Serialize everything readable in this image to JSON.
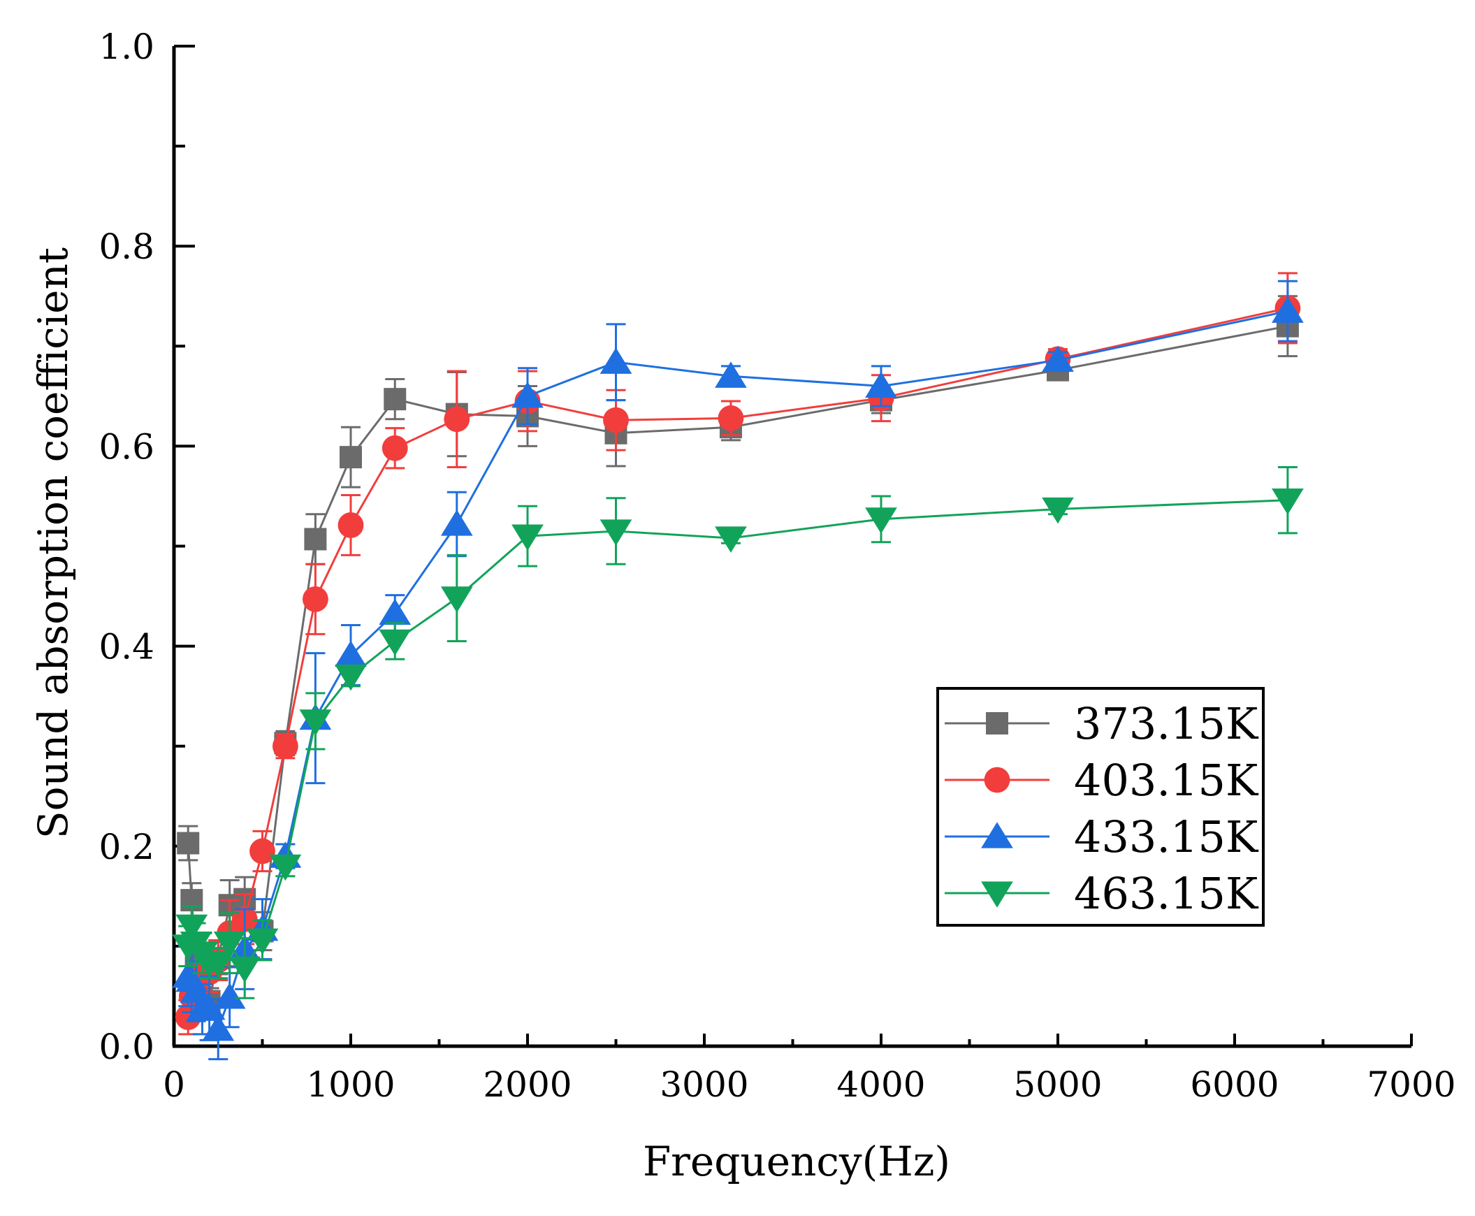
{
  "chart_data": {
    "type": "line",
    "title": "",
    "xlabel": "Frequency(Hz)",
    "ylabel": "Sound absorption coefficient",
    "xlim": [
      0,
      7000
    ],
    "ylim": [
      0.0,
      1.0
    ],
    "x_ticks": [
      0,
      1000,
      2000,
      3000,
      4000,
      5000,
      6000,
      7000
    ],
    "x_tick_labels": [
      "0",
      "1000",
      "2000",
      "3000",
      "4000",
      "5000",
      "6000",
      "7000"
    ],
    "y_ticks": [
      0.0,
      0.2,
      0.4,
      0.6,
      0.8,
      1.0
    ],
    "y_tick_labels": [
      "0.0",
      "0.2",
      "0.4",
      "0.6",
      "0.8",
      "1.0"
    ],
    "grid": false,
    "legend_position": "lower-right",
    "x": [
      80,
      100,
      125,
      160,
      200,
      250,
      315,
      400,
      500,
      630,
      800,
      1000,
      1250,
      1600,
      2000,
      2500,
      3150,
      4000,
      5000,
      6300
    ],
    "series": [
      {
        "name": "373.15K",
        "color": "#6b6b6b",
        "marker": "square",
        "values": [
          0.203,
          0.146,
          0.084,
          0.072,
          0.045,
          0.088,
          0.141,
          0.147,
          0.115,
          0.303,
          0.507,
          0.589,
          0.647,
          0.632,
          0.63,
          0.613,
          0.619,
          0.646,
          0.676,
          0.72
        ],
        "errors": [
          0.017,
          0.017,
          0.016,
          0.013,
          0.013,
          0.016,
          0.025,
          0.022,
          0.019,
          0.012,
          0.025,
          0.03,
          0.02,
          0.042,
          0.03,
          0.033,
          0.013,
          0.013,
          0.007,
          0.03
        ]
      },
      {
        "name": "403.15K",
        "color": "#f23d3d",
        "marker": "circle",
        "values": [
          0.029,
          0.05,
          0.063,
          0.076,
          0.074,
          0.086,
          0.113,
          0.127,
          0.195,
          0.3,
          0.447,
          0.521,
          0.598,
          0.627,
          0.645,
          0.626,
          0.628,
          0.648,
          0.687,
          0.738
        ],
        "errors": [
          0.017,
          0.02,
          0.02,
          0.02,
          0.02,
          0.02,
          0.033,
          0.025,
          0.02,
          0.012,
          0.035,
          0.03,
          0.02,
          0.048,
          0.03,
          0.03,
          0.017,
          0.023,
          0.01,
          0.035
        ]
      },
      {
        "name": "433.15K",
        "color": "#1f6fe0",
        "marker": "triangle-up",
        "values": [
          0.07,
          0.066,
          0.055,
          0.037,
          0.038,
          0.017,
          0.049,
          0.097,
          0.117,
          0.19,
          0.328,
          0.391,
          0.433,
          0.522,
          0.65,
          0.684,
          0.67,
          0.66,
          0.686,
          0.735
        ],
        "errors": [
          0.03,
          0.032,
          0.03,
          0.025,
          0.032,
          0.03,
          0.03,
          0.04,
          0.03,
          0.012,
          0.065,
          0.03,
          0.018,
          0.032,
          0.028,
          0.038,
          0.01,
          0.02,
          0.008,
          0.03
        ]
      },
      {
        "name": "463.15K",
        "color": "#12a35a",
        "marker": "triangle-down",
        "values": [
          0.1,
          0.12,
          0.103,
          0.093,
          0.083,
          0.083,
          0.103,
          0.078,
          0.106,
          0.18,
          0.325,
          0.37,
          0.405,
          0.448,
          0.51,
          0.515,
          0.508,
          0.527,
          0.537,
          0.546
        ],
        "errors": [
          0.02,
          0.02,
          0.02,
          0.02,
          0.015,
          0.015,
          0.03,
          0.03,
          0.02,
          0.01,
          0.028,
          0.01,
          0.018,
          0.043,
          0.03,
          0.033,
          0.005,
          0.023,
          0.005,
          0.033
        ]
      }
    ]
  }
}
